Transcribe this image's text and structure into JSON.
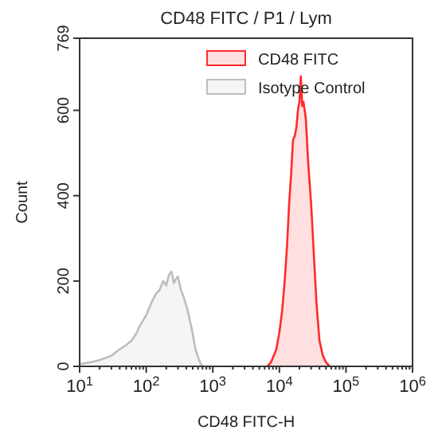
{
  "chart_data": {
    "type": "area",
    "title": "CD48 FITC / P1 / Lym",
    "xlabel": "CD48 FITC-H",
    "ylabel": "Count",
    "log": "x",
    "xlim": [
      10,
      1000000
    ],
    "ylim": [
      0,
      769
    ],
    "xticks": [
      {
        "value": 10,
        "label": "10$^{1}$"
      },
      {
        "value": 100,
        "label": "10$^{2}$"
      },
      {
        "value": 1000,
        "label": "10$^{3}$"
      },
      {
        "value": 10000,
        "label": "10$^{4}$"
      },
      {
        "value": 100000,
        "label": "10$^{5}$"
      },
      {
        "value": 1000000,
        "label": "10$^{6}$"
      }
    ],
    "yticks": [
      0,
      200,
      400,
      600,
      769
    ],
    "legend": "top right",
    "grid": false,
    "series": [
      {
        "name": "CD48 FITC",
        "color": "#ff2a2a",
        "x": [
          6600,
          7500,
          9000,
          10000,
          11000,
          12000,
          13000,
          14000,
          15000,
          16000,
          17000,
          18000,
          19000,
          20000,
          21000,
          22000,
          23000,
          25000,
          27000,
          30000,
          33000,
          36000,
          40000,
          45000,
          50000,
          57000
        ],
        "values": [
          0,
          10,
          40,
          80,
          130,
          200,
          280,
          380,
          450,
          530,
          540,
          560,
          600,
          620,
          680,
          610,
          620,
          580,
          480,
          380,
          260,
          150,
          60,
          25,
          10,
          0
        ]
      },
      {
        "name": "Isotype Control",
        "color": "#bdbdbd",
        "x": [
          10,
          15,
          20,
          30,
          40,
          50,
          60,
          70,
          80,
          100,
          120,
          140,
          160,
          180,
          200,
          220,
          240,
          260,
          280,
          300,
          330,
          370,
          420,
          480,
          550,
          620,
          690
        ],
        "values": [
          5,
          10,
          15,
          25,
          40,
          50,
          60,
          75,
          95,
          120,
          150,
          170,
          180,
          200,
          190,
          215,
          222,
          195,
          205,
          210,
          180,
          160,
          130,
          90,
          40,
          15,
          0
        ]
      }
    ]
  }
}
